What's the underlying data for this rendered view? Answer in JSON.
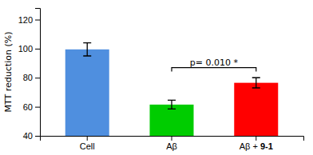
{
  "chart_data": {
    "type": "bar",
    "categories": [
      "Cell",
      "Aβ",
      "Aβ + 9-1"
    ],
    "values": [
      99.5,
      61.5,
      76.5
    ],
    "errors": [
      4.5,
      3.0,
      3.5
    ],
    "colors": [
      "#4f8fdf",
      "#00cc00",
      "#ff0000"
    ],
    "ylabel": "MTT reduction (%)",
    "ylim": [
      40,
      128
    ],
    "yticks": [
      40,
      60,
      80,
      100,
      120
    ],
    "grid": false,
    "annotations": [
      {
        "text": "p= 0.010 *",
        "x": [
          "Aβ",
          "Aβ + 9-1"
        ],
        "y": 87
      }
    ]
  }
}
